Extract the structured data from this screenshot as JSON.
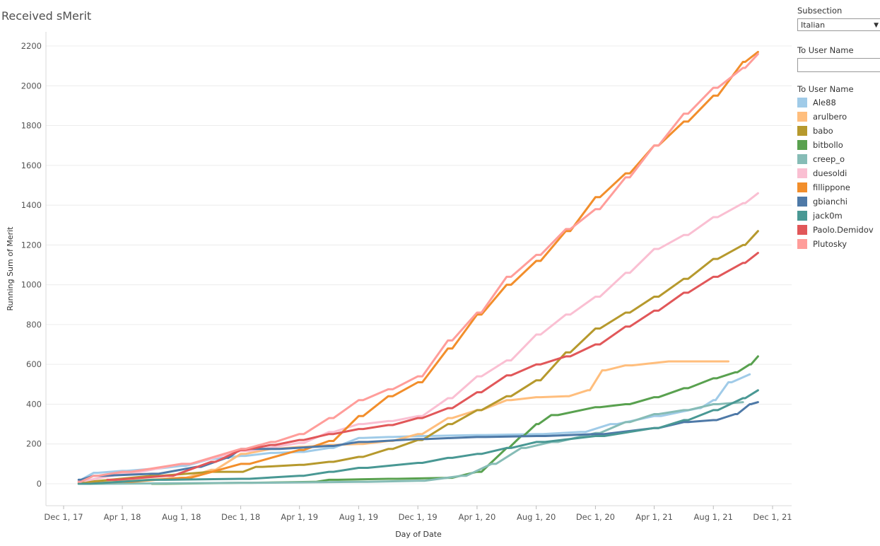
{
  "title": "Received sMerit",
  "filters": {
    "subsection_label": "Subsection",
    "subsection_value": "Italian",
    "user_filter_label": "To User Name",
    "user_filter_value": ""
  },
  "legend_title": "To User Name",
  "chart_data": {
    "type": "line",
    "title": "Received sMerit",
    "xlabel": "Day of Date",
    "ylabel": "Running Sum of Merit",
    "x_ticks": [
      "Dec 1, 17",
      "Apr 1, 18",
      "Aug 1, 18",
      "Dec 1, 18",
      "Apr 1, 19",
      "Aug 1, 19",
      "Dec 1, 19",
      "Apr 1, 20",
      "Aug 1, 20",
      "Dec 1, 20",
      "Apr 1, 21",
      "Aug 1, 21",
      "Dec 1, 21"
    ],
    "y_ticks": [
      0,
      200,
      400,
      600,
      800,
      1000,
      1200,
      1400,
      1600,
      1800,
      2000,
      2200
    ],
    "ylim": [
      -120,
      2280
    ],
    "grid": true,
    "legend_position": "right",
    "series": [
      {
        "name": "Ale88",
        "color": "#a0cbe8",
        "points": [
          [
            "Jan 1, 18",
            20
          ],
          [
            "Feb 1, 18",
            55
          ],
          [
            "Apr 1, 18",
            65
          ],
          [
            "Jun 1, 18",
            75
          ],
          [
            "Aug 1, 18",
            90
          ],
          [
            "Oct 1, 18",
            125
          ],
          [
            "Dec 1, 18",
            140
          ],
          [
            "Feb 1, 19",
            155
          ],
          [
            "Apr 1, 19",
            160
          ],
          [
            "Jun 1, 19",
            180
          ],
          [
            "Aug 1, 19",
            230
          ],
          [
            "Oct 1, 19",
            235
          ],
          [
            "Dec 1, 19",
            240
          ],
          [
            "Apr 1, 20",
            245
          ],
          [
            "Aug 1, 20",
            250
          ],
          [
            "Nov 1, 20",
            260
          ],
          [
            "Jan 1, 21",
            300
          ],
          [
            "Apr 1, 21",
            340
          ],
          [
            "Jul 1, 21",
            380
          ],
          [
            "Aug 1, 21",
            420
          ],
          [
            "Sep 1, 21",
            510
          ],
          [
            "Oct 15, 21",
            550
          ]
        ]
      },
      {
        "name": "arulbero",
        "color": "#ffbe7d",
        "points": [
          [
            "Jan 1, 18",
            5
          ],
          [
            "Apr 1, 18",
            15
          ],
          [
            "Aug 1, 18",
            30
          ],
          [
            "Oct 1, 18",
            70
          ],
          [
            "Dec 1, 18",
            150
          ],
          [
            "Feb 1, 19",
            175
          ],
          [
            "Apr 1, 19",
            185
          ],
          [
            "Jun 1, 19",
            195
          ],
          [
            "Aug 1, 19",
            200
          ],
          [
            "Oct 1, 19",
            215
          ],
          [
            "Dec 1, 19",
            250
          ],
          [
            "Feb 1, 20",
            330
          ],
          [
            "Apr 1, 20",
            370
          ],
          [
            "Jun 1, 20",
            420
          ],
          [
            "Aug 1, 20",
            435
          ],
          [
            "Oct 1, 20",
            440
          ],
          [
            "Nov 15, 20",
            470
          ],
          [
            "Dec 15, 20",
            570
          ],
          [
            "Feb 1, 21",
            595
          ],
          [
            "May 1, 21",
            615
          ],
          [
            "Sep 1, 21",
            615
          ]
        ]
      },
      {
        "name": "babo",
        "color": "#b6992d",
        "points": [
          [
            "Jan 1, 18",
            10
          ],
          [
            "Jun 1, 18",
            40
          ],
          [
            "Oct 1, 18",
            60
          ],
          [
            "Dec 1, 18",
            60
          ],
          [
            "Jan 1, 19",
            85
          ],
          [
            "Apr 1, 19",
            95
          ],
          [
            "Jun 1, 19",
            110
          ],
          [
            "Aug 1, 19",
            135
          ],
          [
            "Oct 1, 19",
            175
          ],
          [
            "Dec 1, 19",
            220
          ],
          [
            "Feb 1, 20",
            300
          ],
          [
            "Apr 1, 20",
            370
          ],
          [
            "Jun 1, 20",
            440
          ],
          [
            "Aug 1, 20",
            520
          ],
          [
            "Oct 1, 20",
            660
          ],
          [
            "Dec 1, 20",
            780
          ],
          [
            "Feb 1, 21",
            860
          ],
          [
            "Apr 1, 21",
            940
          ],
          [
            "Jun 1, 21",
            1030
          ],
          [
            "Aug 1, 21",
            1130
          ],
          [
            "Oct 1, 21",
            1200
          ],
          [
            "Nov 1, 21",
            1270
          ]
        ]
      },
      {
        "name": "bitbollo",
        "color": "#59a14f",
        "points": [
          [
            "Jun 1, 18",
            0
          ],
          [
            "Dec 1, 18",
            5
          ],
          [
            "May 1, 19",
            10
          ],
          [
            "Jun 1, 19",
            20
          ],
          [
            "Oct 1, 19",
            25
          ],
          [
            "Feb 1, 20",
            30
          ],
          [
            "Apr 1, 20",
            60
          ],
          [
            "Jun 1, 20",
            180
          ],
          [
            "Jul 1, 20",
            240
          ],
          [
            "Aug 1, 20",
            300
          ],
          [
            "Sep 1, 20",
            345
          ],
          [
            "Dec 1, 20",
            385
          ],
          [
            "Feb 1, 21",
            400
          ],
          [
            "Apr 1, 21",
            435
          ],
          [
            "Jun 1, 21",
            480
          ],
          [
            "Aug 1, 21",
            530
          ],
          [
            "Sep 15, 21",
            560
          ],
          [
            "Oct 15, 21",
            600
          ],
          [
            "Nov 1, 21",
            640
          ]
        ]
      },
      {
        "name": "creep_o",
        "color": "#86bcb6",
        "points": [
          [
            "Jan 1, 18",
            0
          ],
          [
            "Dec 1, 18",
            5
          ],
          [
            "Aug 1, 19",
            10
          ],
          [
            "Dec 1, 19",
            15
          ],
          [
            "Mar 1, 20",
            40
          ],
          [
            "May 1, 20",
            100
          ],
          [
            "Jul 1, 20",
            180
          ],
          [
            "Sep 1, 20",
            210
          ],
          [
            "Dec 1, 20",
            255
          ],
          [
            "Feb 1, 21",
            310
          ],
          [
            "Apr 1, 21",
            350
          ],
          [
            "Jun 1, 21",
            370
          ],
          [
            "Aug 1, 21",
            400
          ],
          [
            "Oct 1, 21",
            410
          ]
        ]
      },
      {
        "name": "duesoldi",
        "color": "#fabfd2",
        "points": [
          [
            "Jan 1, 18",
            15
          ],
          [
            "Apr 1, 18",
            50
          ],
          [
            "Aug 1, 18",
            100
          ],
          [
            "Dec 1, 18",
            165
          ],
          [
            "Apr 1, 19",
            205
          ],
          [
            "Jun 1, 19",
            260
          ],
          [
            "Aug 1, 19",
            300
          ],
          [
            "Oct 1, 19",
            315
          ],
          [
            "Dec 1, 19",
            340
          ],
          [
            "Feb 1, 20",
            430
          ],
          [
            "Apr 1, 20",
            540
          ],
          [
            "Jun 1, 20",
            620
          ],
          [
            "Aug 1, 20",
            750
          ],
          [
            "Oct 1, 20",
            850
          ],
          [
            "Dec 1, 20",
            940
          ],
          [
            "Feb 1, 21",
            1060
          ],
          [
            "Apr 1, 21",
            1180
          ],
          [
            "Jun 1, 21",
            1250
          ],
          [
            "Aug 1, 21",
            1340
          ],
          [
            "Oct 1, 21",
            1410
          ],
          [
            "Nov 1, 21",
            1460
          ]
        ]
      },
      {
        "name": "fillippone",
        "color": "#f28e2b",
        "points": [
          [
            "Jan 1, 18",
            0
          ],
          [
            "Apr 1, 18",
            10
          ],
          [
            "Aug 1, 18",
            30
          ],
          [
            "Dec 1, 18",
            100
          ],
          [
            "Apr 1, 19",
            170
          ],
          [
            "Jun 1, 19",
            215
          ],
          [
            "Aug 1, 19",
            340
          ],
          [
            "Oct 1, 19",
            440
          ],
          [
            "Dec 1, 19",
            510
          ],
          [
            "Feb 1, 20",
            680
          ],
          [
            "Apr 1, 20",
            850
          ],
          [
            "Jun 1, 20",
            1000
          ],
          [
            "Aug 1, 20",
            1120
          ],
          [
            "Oct 1, 20",
            1270
          ],
          [
            "Dec 1, 20",
            1440
          ],
          [
            "Feb 1, 21",
            1560
          ],
          [
            "Apr 1, 21",
            1700
          ],
          [
            "Jun 1, 21",
            1820
          ],
          [
            "Aug 1, 21",
            1950
          ],
          [
            "Oct 1, 21",
            2120
          ],
          [
            "Nov 1, 21",
            2170
          ]
        ]
      },
      {
        "name": "gbianchi",
        "color": "#4e79a7",
        "points": [
          [
            "Jan 1, 18",
            20
          ],
          [
            "Feb 1, 18",
            40
          ],
          [
            "Jun 1, 18",
            50
          ],
          [
            "Sep 1, 18",
            85
          ],
          [
            "Nov 1, 18",
            130
          ],
          [
            "Dec 1, 18",
            175
          ],
          [
            "Feb 1, 19",
            175
          ],
          [
            "Jun 1, 19",
            190
          ],
          [
            "Aug 1, 19",
            210
          ],
          [
            "Dec 1, 19",
            225
          ],
          [
            "Apr 1, 20",
            235
          ],
          [
            "Aug 1, 20",
            240
          ],
          [
            "Dec 1, 20",
            250
          ],
          [
            "Apr 1, 21",
            280
          ],
          [
            "Jun 1, 21",
            310
          ],
          [
            "Aug 1, 21",
            320
          ],
          [
            "Sep 15, 21",
            350
          ],
          [
            "Oct 15, 21",
            400
          ],
          [
            "Nov 1, 21",
            410
          ]
        ]
      },
      {
        "name": "jack0m",
        "color": "#499894",
        "points": [
          [
            "Jan 1, 18",
            0
          ],
          [
            "Jun 1, 18",
            20
          ],
          [
            "Dec 1, 18",
            25
          ],
          [
            "Apr 1, 19",
            40
          ],
          [
            "Jun 1, 19",
            60
          ],
          [
            "Aug 1, 19",
            80
          ],
          [
            "Dec 1, 19",
            105
          ],
          [
            "Feb 1, 20",
            130
          ],
          [
            "Apr 1, 20",
            150
          ],
          [
            "Jun 1, 20",
            180
          ],
          [
            "Aug 1, 20",
            210
          ],
          [
            "Dec 1, 20",
            240
          ],
          [
            "Apr 1, 21",
            280
          ],
          [
            "Jun 1, 21",
            320
          ],
          [
            "Aug 1, 21",
            370
          ],
          [
            "Oct 1, 21",
            430
          ],
          [
            "Nov 1, 21",
            470
          ]
        ]
      },
      {
        "name": "Paolo.Demidov",
        "color": "#e15759",
        "points": [
          [
            "Mar 1, 18",
            20
          ],
          [
            "Jul 1, 18",
            40
          ],
          [
            "Oct 1, 18",
            110
          ],
          [
            "Dec 1, 18",
            170
          ],
          [
            "Feb 1, 19",
            195
          ],
          [
            "Apr 1, 19",
            220
          ],
          [
            "Jun 1, 19",
            250
          ],
          [
            "Aug 1, 19",
            275
          ],
          [
            "Oct 1, 19",
            295
          ],
          [
            "Dec 1, 19",
            330
          ],
          [
            "Feb 1, 20",
            380
          ],
          [
            "Apr 1, 20",
            460
          ],
          [
            "Jun 1, 20",
            545
          ],
          [
            "Aug 1, 20",
            600
          ],
          [
            "Oct 1, 20",
            640
          ],
          [
            "Dec 1, 20",
            700
          ],
          [
            "Feb 1, 21",
            790
          ],
          [
            "Apr 1, 21",
            870
          ],
          [
            "Jun 1, 21",
            960
          ],
          [
            "Aug 1, 21",
            1040
          ],
          [
            "Oct 1, 21",
            1110
          ],
          [
            "Nov 1, 21",
            1160
          ]
        ]
      },
      {
        "name": "Plutosky",
        "color": "#ff9d9a",
        "points": [
          [
            "Jan 1, 18",
            10
          ],
          [
            "Feb 1, 18",
            40
          ],
          [
            "Apr 1, 18",
            60
          ],
          [
            "Aug 1, 18",
            100
          ],
          [
            "Dec 1, 18",
            175
          ],
          [
            "Feb 1, 19",
            210
          ],
          [
            "Apr 1, 19",
            250
          ],
          [
            "Jun 1, 19",
            330
          ],
          [
            "Aug 1, 19",
            420
          ],
          [
            "Oct 1, 19",
            475
          ],
          [
            "Dec 1, 19",
            540
          ],
          [
            "Feb 1, 20",
            720
          ],
          [
            "Apr 1, 20",
            860
          ],
          [
            "Jun 1, 20",
            1040
          ],
          [
            "Aug 1, 20",
            1150
          ],
          [
            "Oct 1, 20",
            1280
          ],
          [
            "Dec 1, 20",
            1380
          ],
          [
            "Feb 1, 21",
            1540
          ],
          [
            "Apr 1, 21",
            1700
          ],
          [
            "Jun 1, 21",
            1860
          ],
          [
            "Aug 1, 21",
            1990
          ],
          [
            "Oct 1, 21",
            2090
          ],
          [
            "Nov 1, 21",
            2160
          ]
        ]
      }
    ]
  }
}
